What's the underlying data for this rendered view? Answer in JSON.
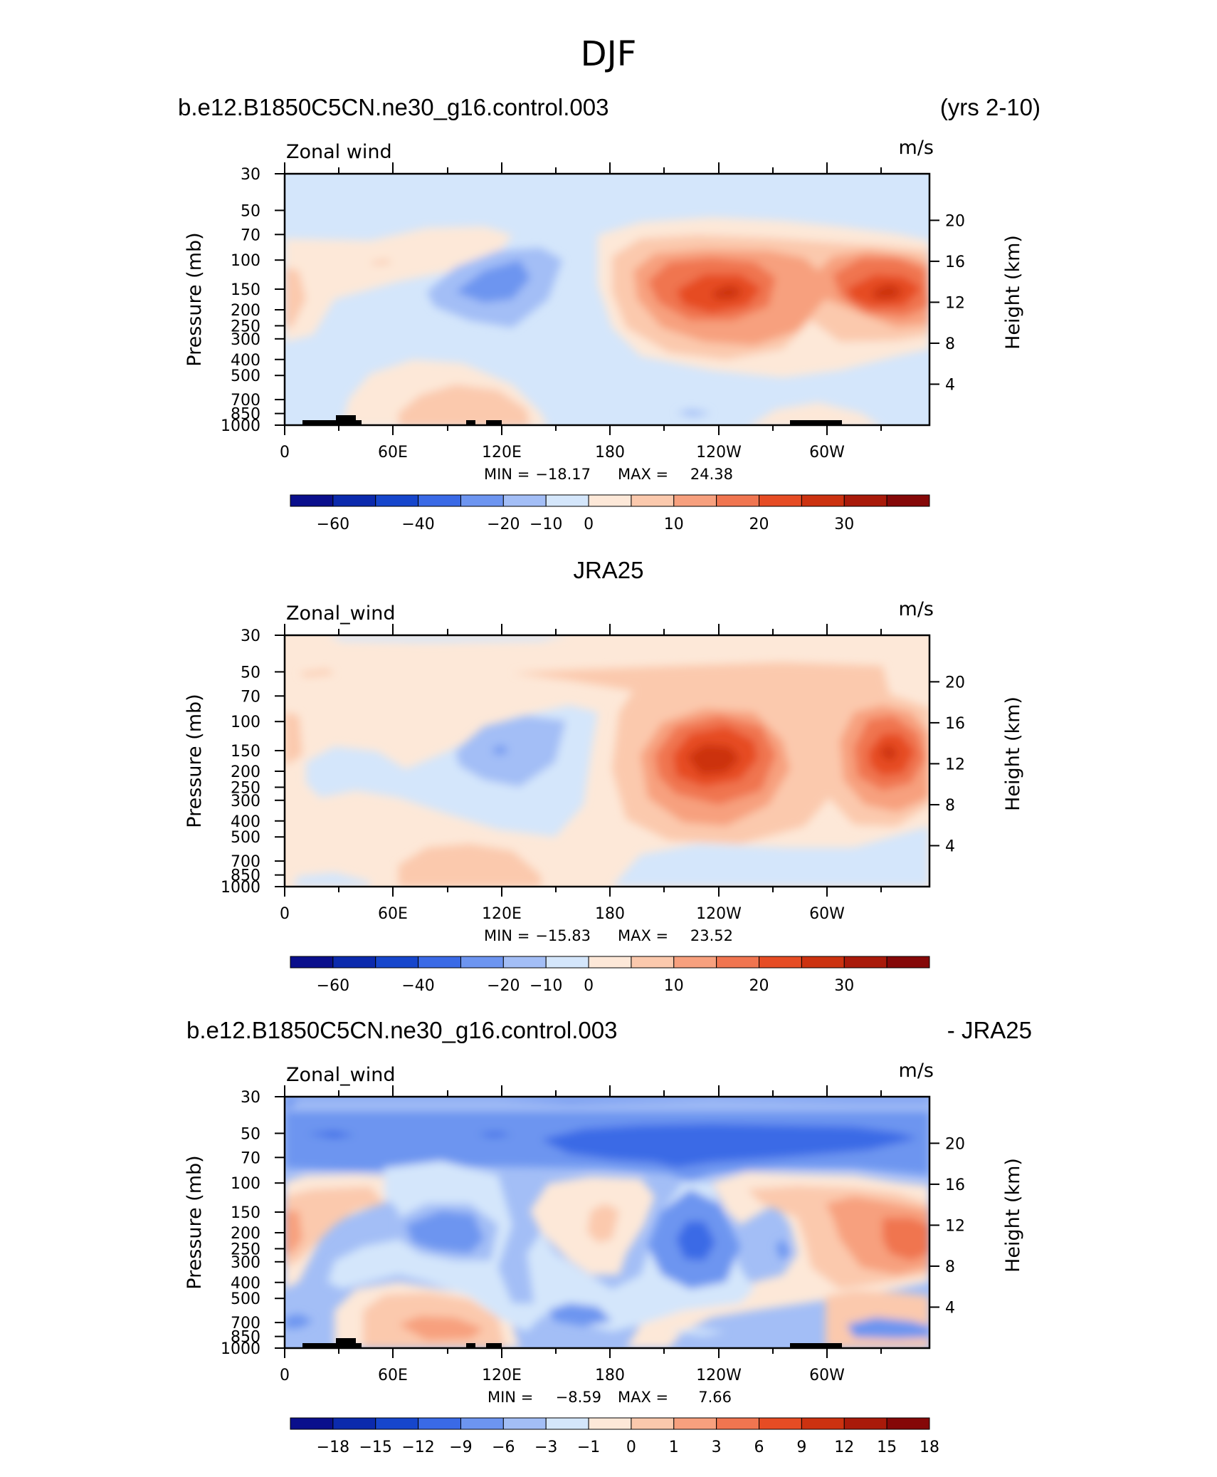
{
  "main_title": "DJF",
  "colors": {
    "neg": [
      "#0a0f8c",
      "#0b2aad",
      "#1646cc",
      "#3a6ae6",
      "#6d95f0",
      "#a3bef6",
      "#d4e6fb"
    ],
    "pos": [
      "#fde8d8",
      "#fbc9ad",
      "#f7a07e",
      "#f07550",
      "#e64c24",
      "#cc3210",
      "#a91a0a",
      "#850808"
    ],
    "topo": "#000000"
  },
  "chart_data": [
    {
      "type": "contour",
      "title_left": "b.e12.B1850C5CN.ne30_g16.control.003",
      "title_right": "(yrs 2-10)",
      "title_center": "",
      "var_label": "Zonal wind",
      "units": "m/s",
      "ylabel": "Pressure (mb)",
      "ylabel_right": "Height (km)",
      "x_ticks": [
        "0",
        "60E",
        "120E",
        "180",
        "120W",
        "60W"
      ],
      "y_ticks": [
        "30",
        "50",
        "70",
        "100",
        "150",
        "200",
        "250",
        "300",
        "400",
        "500",
        "700",
        "850",
        "1000"
      ],
      "height_ticks": [
        "20",
        "16",
        "12",
        "8",
        "4"
      ],
      "min_label": "MIN =",
      "min": "−18.17",
      "max_label": "MAX =",
      "max": "24.38",
      "colorbar_labels": [
        "−60",
        "−40",
        "−20",
        "−10",
        "0",
        "10",
        "20",
        "30"
      ]
    },
    {
      "type": "contour",
      "title_left": "",
      "title_right": "",
      "title_center": "JRA25",
      "var_label": "Zonal_wind",
      "units": "m/s",
      "ylabel": "Pressure (mb)",
      "ylabel_right": "Height (km)",
      "x_ticks": [
        "0",
        "60E",
        "120E",
        "180",
        "120W",
        "60W"
      ],
      "y_ticks": [
        "30",
        "50",
        "70",
        "100",
        "150",
        "200",
        "250",
        "300",
        "400",
        "500",
        "700",
        "850",
        "1000"
      ],
      "height_ticks": [
        "20",
        "16",
        "12",
        "8",
        "4"
      ],
      "min_label": "MIN =",
      "min": "−15.83",
      "max_label": "MAX =",
      "max": "23.52",
      "colorbar_labels": [
        "−60",
        "−40",
        "−20",
        "−10",
        "0",
        "10",
        "20",
        "30"
      ]
    },
    {
      "type": "contour",
      "title_left": "b.e12.B1850C5CN.ne30_g16.control.003",
      "title_right": "- JRA25",
      "title_center": "",
      "var_label": "Zonal_wind",
      "units": "m/s",
      "ylabel": "Pressure (mb)",
      "ylabel_right": "Height (km)",
      "x_ticks": [
        "0",
        "60E",
        "120E",
        "180",
        "120W",
        "60W"
      ],
      "y_ticks": [
        "30",
        "50",
        "70",
        "100",
        "150",
        "200",
        "250",
        "300",
        "400",
        "500",
        "700",
        "850",
        "1000"
      ],
      "height_ticks": [
        "20",
        "16",
        "12",
        "8",
        "4"
      ],
      "min_label": "MIN =",
      "min": "−8.59",
      "max_label": "MAX =",
      "max": "7.66",
      "colorbar_labels": [
        "−18",
        "−15",
        "−12",
        "−9",
        "−6",
        "−3",
        "−1",
        "0",
        "1",
        "3",
        "6",
        "9",
        "12",
        "15",
        "18"
      ]
    }
  ]
}
